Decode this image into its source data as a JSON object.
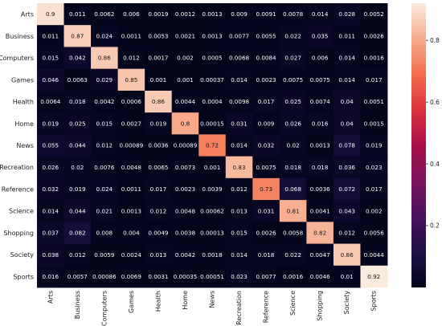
{
  "chart_data": {
    "type": "heatmap",
    "title": "",
    "xlabel": "",
    "ylabel": "",
    "categories_x": [
      "Arts",
      "Business",
      "Computers",
      "Games",
      "Health",
      "Home",
      "News",
      "Recreation",
      "Reference",
      "Science",
      "Shopping",
      "Society",
      "Sports"
    ],
    "categories_y": [
      "Arts",
      "Business",
      "Computers",
      "Games",
      "Health",
      "Home",
      "News",
      "Recreation",
      "Reference",
      "Science",
      "Shopping",
      "Society",
      "Sports"
    ],
    "cell_labels": [
      [
        "0.9",
        "0.011",
        "0.0062",
        "0.006",
        "0.0019",
        "0.0012",
        "0.0013",
        "0.009",
        "0.0091",
        "0.0078",
        "0.014",
        "0.028",
        "0.0052"
      ],
      [
        "0.011",
        "0.87",
        "0.024",
        "0.0011",
        "0.0053",
        "0.0021",
        "0.0013",
        "0.0077",
        "0.0055",
        "0.022",
        "0.035",
        "0.011",
        "0.0026"
      ],
      [
        "0.015",
        "0.042",
        "0.86",
        "0.012",
        "0.0017",
        "0.002",
        "0.0005",
        "0.0068",
        "0.0084",
        "0.027",
        "0.006",
        "0.014",
        "0.0016"
      ],
      [
        "0.046",
        "0.0063",
        "0.029",
        "0.85",
        "0.001",
        "0.001",
        "0.00037",
        "0.014",
        "0.0023",
        "0.0075",
        "0.0075",
        "0.014",
        "0.017"
      ],
      [
        "0.0064",
        "0.018",
        "0.0042",
        "0.0006",
        "0.86",
        "0.0044",
        "0.0004",
        "0.0098",
        "0.017",
        "0.025",
        "0.0074",
        "0.04",
        "0.0051"
      ],
      [
        "0.019",
        "0.025",
        "0.015",
        "0.0027",
        "0.019",
        "0.8",
        "0.00015",
        "0.031",
        "0.009",
        "0.026",
        "0.016",
        "0.04",
        "0.0015"
      ],
      [
        "0.055",
        "0.044",
        "0.012",
        "0.00089",
        "0.0036",
        "0.00089",
        "0.72",
        "0.014",
        "0.032",
        "0.02",
        "0.0013",
        "0.078",
        "0.019"
      ],
      [
        "0.026",
        "0.02",
        "0.0076",
        "0.0048",
        "0.0065",
        "0.0073",
        "0.001",
        "0.83",
        "0.0075",
        "0.018",
        "0.018",
        "0.036",
        "0.023"
      ],
      [
        "0.032",
        "0.019",
        "0.024",
        "0.0011",
        "0.017",
        "0.0023",
        "0.0039",
        "0.012",
        "0.73",
        "0.068",
        "0.0036",
        "0.072",
        "0.017"
      ],
      [
        "0.014",
        "0.044",
        "0.021",
        "0.0013",
        "0.012",
        "0.0048",
        "0.00062",
        "0.013",
        "0.031",
        "0.81",
        "0.0041",
        "0.043",
        "0.002"
      ],
      [
        "0.037",
        "0.082",
        "0.008",
        "0.004",
        "0.0049",
        "0.0038",
        "0.00013",
        "0.015",
        "0.0026",
        "0.0058",
        "0.82",
        "0.012",
        "0.0056"
      ],
      [
        "0.038",
        "0.012",
        "0.0059",
        "0.0024",
        "0.013",
        "0.0042",
        "0.0018",
        "0.014",
        "0.018",
        "0.022",
        "0.0047",
        "0.86",
        "0.0044"
      ],
      [
        "0.016",
        "0.0057",
        "0.00086",
        "0.0069",
        "0.0031",
        "0.00035",
        "0.00051",
        "0.023",
        "0.0077",
        "0.0016",
        "0.0046",
        "0.01",
        "0.92"
      ]
    ],
    "colormap": "rocket",
    "colorbar": {
      "range": [
        0,
        0.92
      ],
      "ticks": [
        "0.2",
        "0.4",
        "0.6",
        "0.8"
      ],
      "tick_values": [
        0.2,
        0.4,
        0.6,
        0.8
      ]
    },
    "grid": false,
    "legend": "colorbar-right"
  },
  "colors": {
    "low": "#03051a",
    "high": "#faebdd",
    "text_on_dark": "#ffffff",
    "text_on_light": "#111111"
  }
}
